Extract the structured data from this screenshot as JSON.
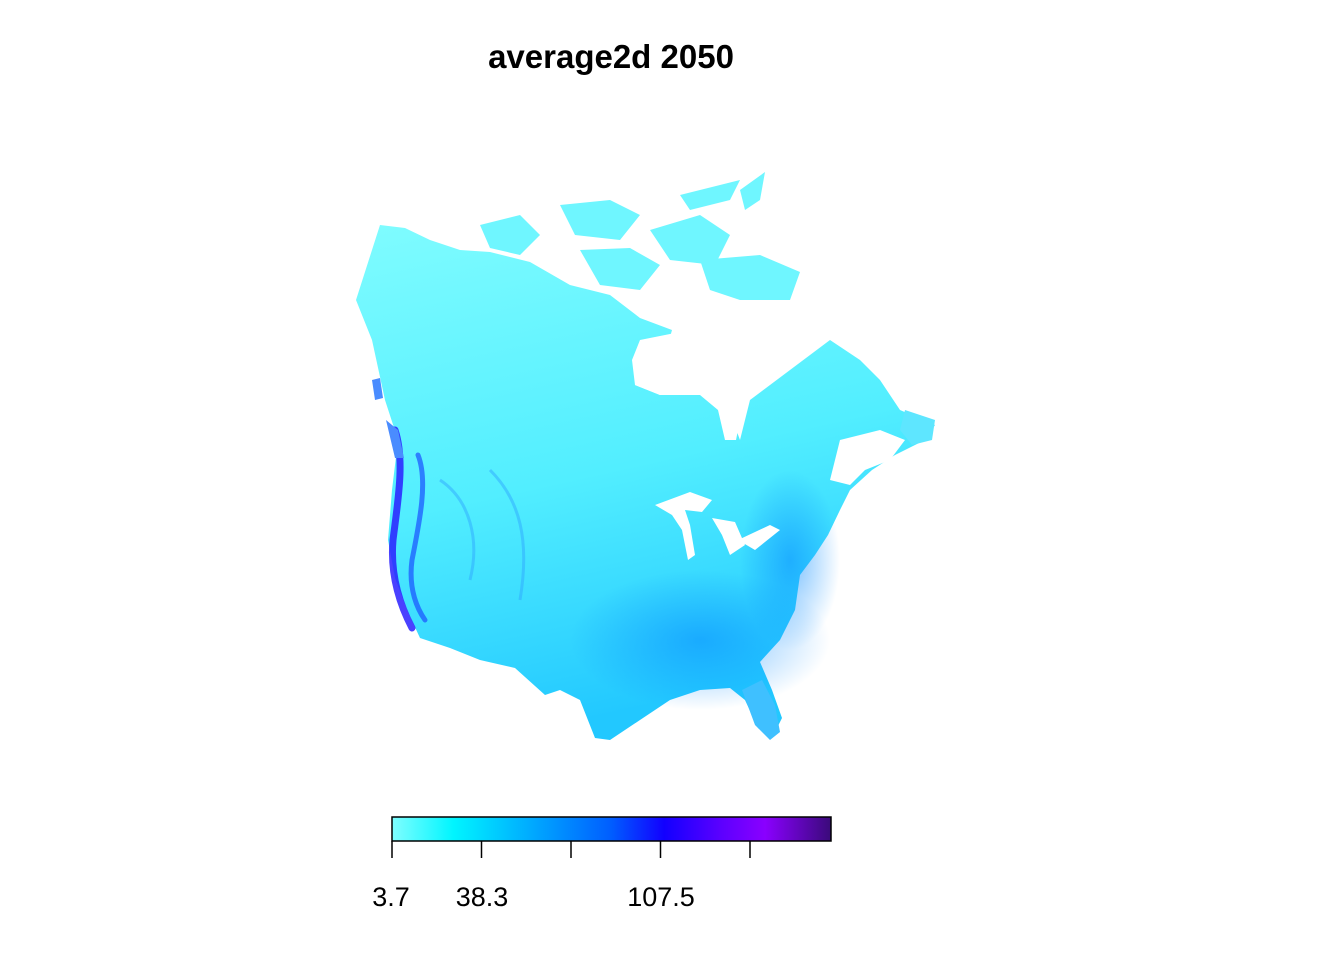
{
  "title": "average2d 2050",
  "legend": {
    "tick_labels": [
      "3.7",
      "38.3",
      "107.5"
    ],
    "tick_count": 5,
    "colors": [
      "#7ffeff",
      "#00f5ff",
      "#00a9ff",
      "#005dff",
      "#1200ff",
      "#5c00ff",
      "#8a00ff",
      "#3a0a7a"
    ]
  },
  "map": {
    "region": "North America (Canada and contiguous United States)",
    "base_color": "#66f3ff",
    "high_color": "#1a2cff"
  }
}
